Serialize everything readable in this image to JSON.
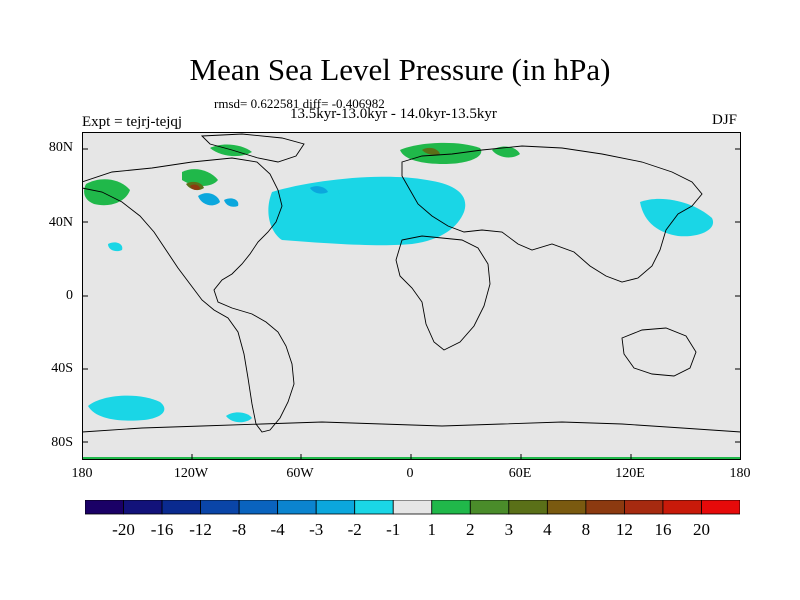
{
  "title": "Mean Sea Level Pressure (in hPa)",
  "stats_line": "rmsd= 0.622581 diff= -0.406982",
  "period_line": "13.5kyr-13.0kyr - 14.0kyr-13.5kyr",
  "experiment_label": "Expt = tejrj-tejqj",
  "season": "DJF",
  "lat_ticks": [
    "80N",
    "40N",
    "0",
    "40S",
    "80S"
  ],
  "lon_ticks": [
    "180",
    "120W",
    "60W",
    "0",
    "60E",
    "120E",
    "180"
  ],
  "colorbar": {
    "labels": [
      "-20",
      "-16",
      "-12",
      "-8",
      "-4",
      "-3",
      "-2",
      "-1",
      "1",
      "2",
      "3",
      "4",
      "8",
      "12",
      "16",
      "20"
    ],
    "colors": [
      "#1a0066",
      "#12127a",
      "#0a2a8f",
      "#0a45a8",
      "#0a63be",
      "#0b84cf",
      "#0ba7dd",
      "#1ad6e6",
      "#e6e6e6",
      "#20b84a",
      "#4a8c2a",
      "#5a7018",
      "#7a5a10",
      "#8c3a10",
      "#a62a10",
      "#c81a0a",
      "#e60a0a"
    ]
  },
  "colors": {
    "land_sea_background": "#e6e6e6",
    "negative_small": "#1ad6e6",
    "positive_small": "#20b84a"
  }
}
